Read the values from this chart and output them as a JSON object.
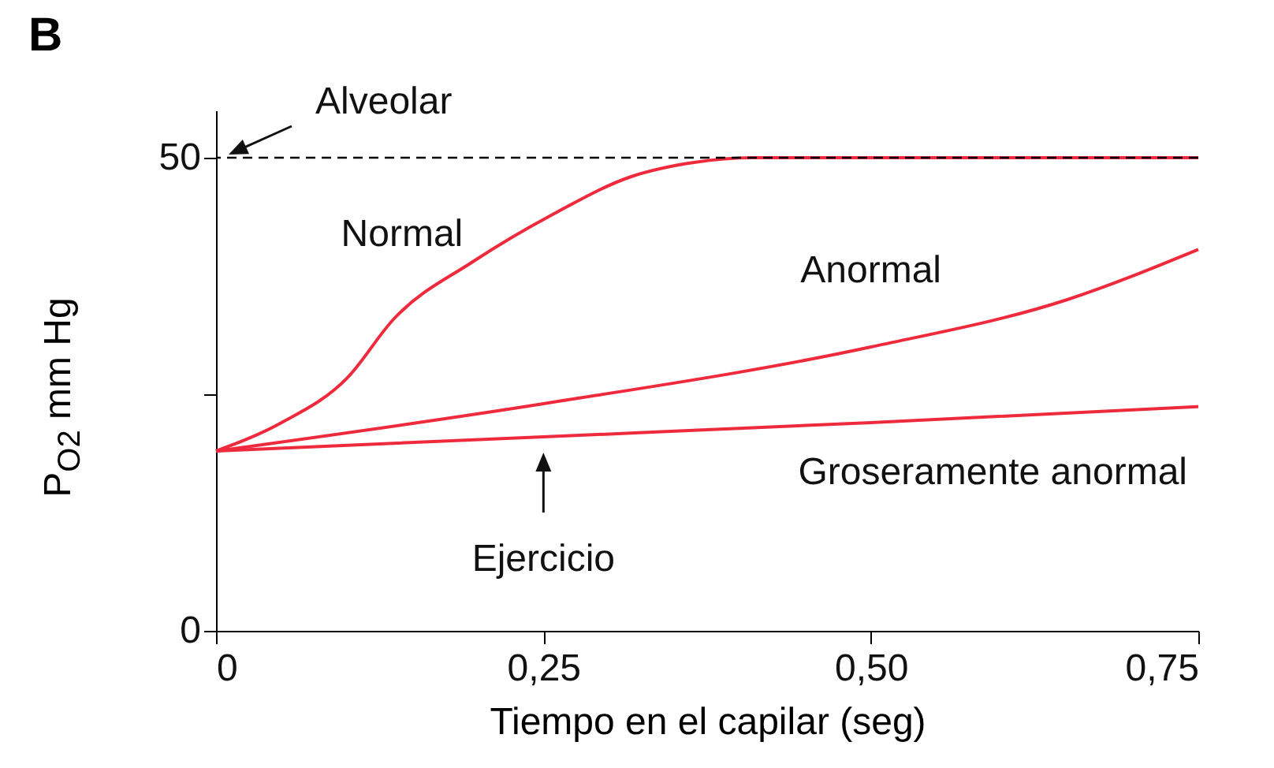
{
  "chart_data": {
    "type": "line",
    "title": "B",
    "xlabel": "Tiempo en el capilar (seg)",
    "ylabel": "P$_{O2}$ mm Hg",
    "xlim": [
      0,
      0.75
    ],
    "xticks": [
      0,
      {
        "value": 0.25,
        "label": "0,25"
      },
      {
        "value": 0.5,
        "label": "0,50"
      },
      {
        "value": 0.75,
        "label": "0,75"
      }
    ],
    "ylim": [
      0,
      55
    ],
    "yticks": [
      0,
      {
        "value": 25,
        "label": null
      },
      50
    ],
    "grid": false,
    "line_style": "solid",
    "series": [
      {
        "name": "Normal",
        "color": "#ee2a3c",
        "x": [
          0,
          0.05,
          0.1,
          0.136,
          0.196,
          0.257,
          0.317,
          0.365,
          0.41,
          0.75
        ],
        "values": [
          19,
          22,
          26.7,
          33,
          39,
          44,
          48,
          49.5,
          50,
          50
        ]
      },
      {
        "name": "Anormal",
        "color": "#ee2a3c",
        "x": [
          0,
          0.25,
          0.5,
          0.65,
          0.75
        ],
        "values": [
          19,
          24,
          30,
          35,
          40.3
        ]
      },
      {
        "name": "Groseramente anormal",
        "color": "#ee2a3c",
        "x": [
          0,
          0.25,
          0.5,
          0.75
        ],
        "values": [
          19,
          20.5,
          22,
          23.7
        ]
      }
    ],
    "ref_lines": [
      {
        "axis": "y",
        "value": 50,
        "label": "Alveolar",
        "color": "#000000",
        "line_style": "dashed"
      }
    ],
    "annotations": [
      {
        "text": "Ejercicio",
        "x": 0.25,
        "y": 20.5
      }
    ]
  }
}
